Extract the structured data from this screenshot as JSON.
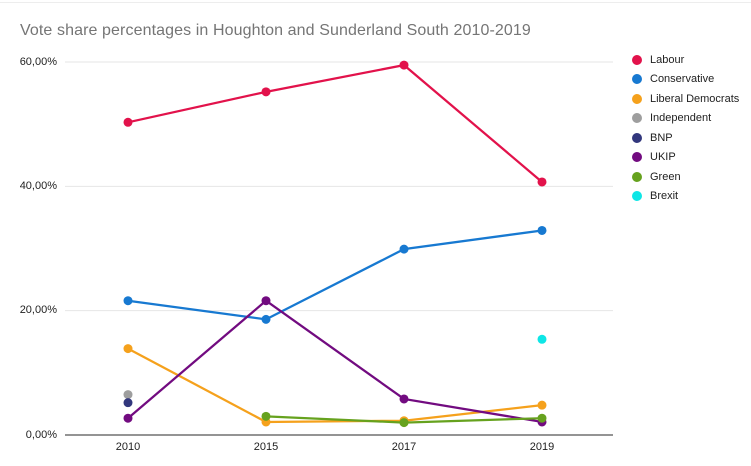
{
  "chart_data": {
    "type": "line",
    "title": "Vote share percentages in Houghton and Sunderland South 2010-2019",
    "x": [
      2010,
      2015,
      2017,
      2019
    ],
    "x_labels": [
      "2010",
      "2015",
      "2017",
      "2019"
    ],
    "y_axis": {
      "range": [
        0,
        60
      ],
      "unit": "percent",
      "decimal_separator": "comma",
      "ticks": [
        {
          "value": 0,
          "label": "0,00%"
        },
        {
          "value": 20,
          "label": "20,00%"
        },
        {
          "value": 40,
          "label": "40,00%"
        },
        {
          "value": 60,
          "label": "60,00%"
        }
      ]
    },
    "grid": true,
    "legend_position": "right",
    "series": [
      {
        "name": "Labour",
        "color": "#E2124B",
        "values": [
          50.3,
          55.2,
          59.5,
          40.7
        ]
      },
      {
        "name": "Conservative",
        "color": "#1779D1",
        "values": [
          21.6,
          18.6,
          29.9,
          32.9
        ]
      },
      {
        "name": "Liberal Democrats",
        "color": "#F5A11C",
        "values": [
          13.9,
          2.1,
          2.3,
          4.8
        ]
      },
      {
        "name": "Independent",
        "color": "#9E9E9E",
        "values": [
          6.5,
          null,
          null,
          null
        ]
      },
      {
        "name": "BNP",
        "color": "#32377D",
        "values": [
          5.2,
          null,
          null,
          null
        ]
      },
      {
        "name": "UKIP",
        "color": "#720B80",
        "values": [
          2.7,
          21.6,
          5.8,
          2.1
        ]
      },
      {
        "name": "Green",
        "color": "#66A21E",
        "values": [
          null,
          3.0,
          2.0,
          2.7
        ]
      },
      {
        "name": "Brexit",
        "color": "#0EE6E6",
        "values": [
          null,
          null,
          null,
          15.4
        ]
      }
    ]
  }
}
